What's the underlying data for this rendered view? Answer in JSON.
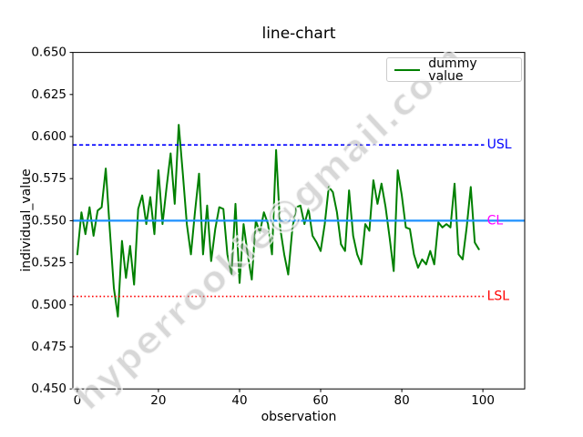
{
  "chart_data": {
    "type": "line",
    "title": "line-chart",
    "xlabel": "observation",
    "ylabel": "individual_value",
    "xlim": [
      -1.1,
      110.3
    ],
    "ylim": [
      0.45,
      0.65
    ],
    "grid": false,
    "legend_position": "upper right",
    "xticks": {
      "values": [
        0,
        20,
        40,
        60,
        80,
        100
      ],
      "labels": [
        "0",
        "20",
        "40",
        "60",
        "80",
        "100"
      ]
    },
    "yticks": {
      "values": [
        0.45,
        0.475,
        0.5,
        0.525,
        0.55,
        0.575,
        0.6,
        0.625,
        0.65
      ],
      "labels": [
        "0.450",
        "0.475",
        "0.500",
        "0.525",
        "0.550",
        "0.575",
        "0.600",
        "0.625",
        "0.650"
      ]
    },
    "series": [
      {
        "name": "dummy value",
        "color": "#008000",
        "line_style": "solid",
        "x_start": 0,
        "x_step": 1,
        "values": [
          0.53,
          0.555,
          0.542,
          0.558,
          0.541,
          0.556,
          0.558,
          0.581,
          0.545,
          0.51,
          0.493,
          0.538,
          0.516,
          0.535,
          0.512,
          0.557,
          0.565,
          0.548,
          0.564,
          0.542,
          0.58,
          0.548,
          0.57,
          0.59,
          0.56,
          0.607,
          0.578,
          0.548,
          0.53,
          0.555,
          0.578,
          0.53,
          0.559,
          0.526,
          0.545,
          0.558,
          0.557,
          0.53,
          0.518,
          0.56,
          0.513,
          0.548,
          0.53,
          0.515,
          0.55,
          0.543,
          0.555,
          0.548,
          0.53,
          0.592,
          0.546,
          0.53,
          0.518,
          0.545,
          0.558,
          0.559,
          0.548,
          0.557,
          0.541,
          0.537,
          0.532,
          0.548,
          0.57,
          0.567,
          0.555,
          0.536,
          0.532,
          0.568,
          0.541,
          0.53,
          0.524,
          0.548,
          0.544,
          0.574,
          0.56,
          0.572,
          0.558,
          0.54,
          0.52,
          0.58,
          0.565,
          0.546,
          0.545,
          0.53,
          0.522,
          0.527,
          0.524,
          0.532,
          0.524,
          0.549,
          0.546,
          0.548,
          0.546,
          0.572,
          0.53,
          0.527,
          0.546,
          0.57,
          0.537,
          0.533
        ]
      }
    ],
    "ref_lines": [
      {
        "label": "USL",
        "value": 0.595,
        "color": "#0000ff",
        "label_color": "#0000ff",
        "style": "dashed",
        "x_start": -1.1,
        "x_end": 100.3,
        "label_x": 101
      },
      {
        "label": "CL",
        "value": 0.55,
        "color": "#1e90ff",
        "label_color": "#ff00ff",
        "style": "solid",
        "x_start": -1.1,
        "x_end": 110.3,
        "label_x": 101
      },
      {
        "label": "LSL",
        "value": 0.505,
        "color": "#ff0000",
        "label_color": "#ff0000",
        "style": "dotted",
        "x_start": -1.1,
        "x_end": 100.3,
        "label_x": 101
      }
    ],
    "watermark_text": "hyperrookie@gmail.com"
  },
  "legend": {
    "entries": [
      {
        "label": "dummy value",
        "color": "#008000"
      }
    ]
  }
}
